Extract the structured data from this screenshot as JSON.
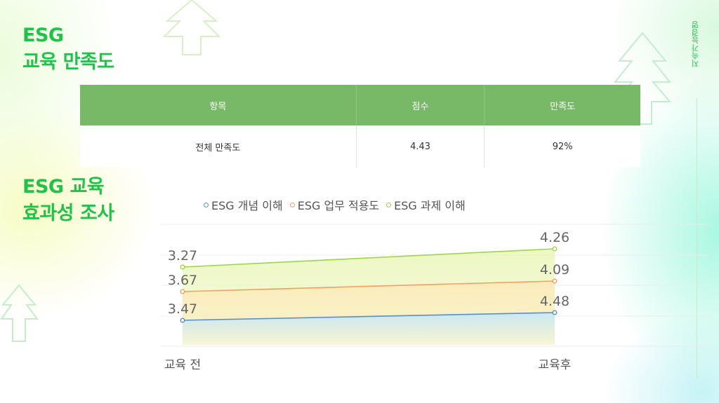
{
  "header": {
    "title1_line1": "ESG",
    "title1_line2": "교육 만족도",
    "title2_line1": "ESG 교육",
    "title2_line2": "효과성 조사",
    "side_label": "지속가능경영"
  },
  "table": {
    "headers": [
      "항목",
      "점수",
      "만족도"
    ],
    "rows": [
      [
        "전체 만족도",
        "4.43",
        "92%"
      ]
    ]
  },
  "colors": {
    "accent": "#22c24a",
    "table_header": "#78b968",
    "series_blue": "#5a8fc4",
    "series_orange": "#f4a061",
    "series_green": "#9fd54a"
  },
  "chart_data": {
    "type": "area",
    "categories": [
      "교육 전",
      "교육후"
    ],
    "series": [
      {
        "name": "ESG 개념 이해",
        "values": [
          3.47,
          4.48
        ],
        "color": "#5a8fc4",
        "fill": "#c8e8f7"
      },
      {
        "name": "ESG 업무 적용도",
        "values": [
          3.67,
          4.09
        ],
        "color": "#f4a061",
        "fill": "#fdeec4"
      },
      {
        "name": "ESG 과제 이해",
        "values": [
          3.27,
          4.26
        ],
        "color": "#9fd54a",
        "fill": "#eef8c4"
      }
    ],
    "legend": "top",
    "grid": true
  }
}
